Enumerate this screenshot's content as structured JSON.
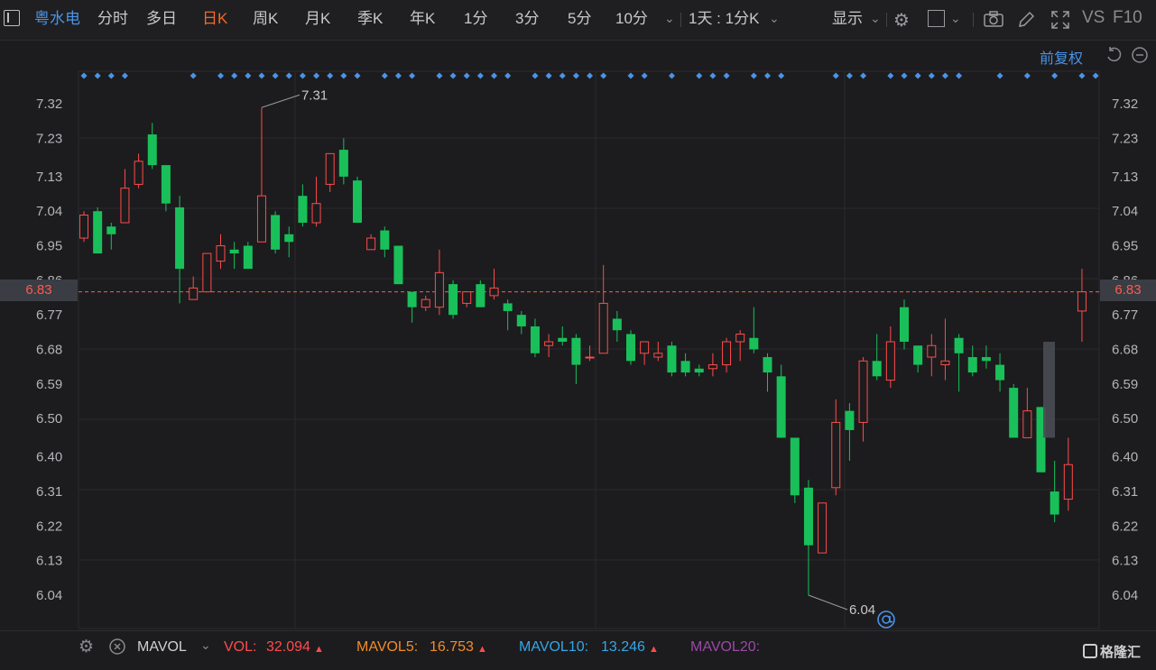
{
  "toolbar": {
    "stock_name": "粤水电",
    "periods": [
      "分时",
      "多日",
      "日K",
      "周K",
      "月K",
      "季K",
      "年K",
      "1分",
      "3分",
      "5分",
      "10分"
    ],
    "active_period": "日K",
    "period_dropdown_label": "1天 : 1分K",
    "display_label": "显示",
    "vs_label": "VS",
    "f10_label": "F10"
  },
  "chart": {
    "adjust_label": "前复权",
    "current_price": "6.83",
    "high_label": "7.31",
    "low_label": "6.04",
    "y_ticks": [
      "7.32",
      "7.23",
      "7.13",
      "7.04",
      "6.95",
      "6.86",
      "6.77",
      "6.68",
      "6.59",
      "6.50",
      "6.40",
      "6.31",
      "6.22",
      "6.13",
      "6.04"
    ],
    "colors": {
      "up": "#ff4b4b",
      "down": "#19c05a",
      "grid": "#2a2a2c",
      "signal": "#4b93e6"
    }
  },
  "chart_data": {
    "type": "candlestick",
    "y_ticks": [
      7.32,
      7.23,
      7.13,
      7.04,
      6.95,
      6.86,
      6.77,
      6.68,
      6.59,
      6.5,
      6.4,
      6.31,
      6.22,
      6.13,
      6.04
    ],
    "ylim": [
      5.99,
      7.37
    ],
    "current_price": 6.83,
    "high": 7.31,
    "low": 6.04,
    "candles": [
      {
        "o": 6.97,
        "c": 7.03,
        "h": 7.04,
        "l": 6.96
      },
      {
        "o": 7.04,
        "c": 6.93,
        "h": 7.05,
        "l": 6.93
      },
      {
        "o": 7.0,
        "c": 6.98,
        "h": 7.01,
        "l": 6.94
      },
      {
        "o": 7.01,
        "c": 7.1,
        "h": 7.15,
        "l": 7.01
      },
      {
        "o": 7.11,
        "c": 7.17,
        "h": 7.19,
        "l": 7.1
      },
      {
        "o": 7.24,
        "c": 7.16,
        "h": 7.27,
        "l": 7.15
      },
      {
        "o": 7.16,
        "c": 7.06,
        "h": 7.16,
        "l": 7.04
      },
      {
        "o": 7.05,
        "c": 6.89,
        "h": 7.08,
        "l": 6.8
      },
      {
        "o": 6.81,
        "c": 6.84,
        "h": 6.87,
        "l": 6.81
      },
      {
        "o": 6.83,
        "c": 6.93,
        "h": 6.93,
        "l": 6.83
      },
      {
        "o": 6.91,
        "c": 6.95,
        "h": 6.98,
        "l": 6.89
      },
      {
        "o": 6.94,
        "c": 6.93,
        "h": 6.96,
        "l": 6.89
      },
      {
        "o": 6.95,
        "c": 6.89,
        "h": 6.96,
        "l": 6.89
      },
      {
        "o": 6.96,
        "c": 7.08,
        "h": 7.31,
        "l": 6.96
      },
      {
        "o": 7.03,
        "c": 6.94,
        "h": 7.04,
        "l": 6.93
      },
      {
        "o": 6.98,
        "c": 6.96,
        "h": 7.0,
        "l": 6.92
      },
      {
        "o": 7.08,
        "c": 7.01,
        "h": 7.11,
        "l": 7.0
      },
      {
        "o": 7.01,
        "c": 7.06,
        "h": 7.13,
        "l": 7.0
      },
      {
        "o": 7.11,
        "c": 7.19,
        "h": 7.19,
        "l": 7.09
      },
      {
        "o": 7.2,
        "c": 7.13,
        "h": 7.23,
        "l": 7.11
      },
      {
        "o": 7.12,
        "c": 7.01,
        "h": 7.13,
        "l": 7.01
      },
      {
        "o": 6.94,
        "c": 6.97,
        "h": 6.98,
        "l": 6.94
      },
      {
        "o": 6.99,
        "c": 6.94,
        "h": 7.0,
        "l": 6.92
      },
      {
        "o": 6.95,
        "c": 6.85,
        "h": 6.95,
        "l": 6.85
      },
      {
        "o": 6.83,
        "c": 6.79,
        "h": 6.83,
        "l": 6.75
      },
      {
        "o": 6.79,
        "c": 6.81,
        "h": 6.82,
        "l": 6.78
      },
      {
        "o": 6.79,
        "c": 6.88,
        "h": 6.94,
        "l": 6.77
      },
      {
        "o": 6.85,
        "c": 6.77,
        "h": 6.86,
        "l": 6.76
      },
      {
        "o": 6.8,
        "c": 6.83,
        "h": 6.83,
        "l": 6.79
      },
      {
        "o": 6.85,
        "c": 6.79,
        "h": 6.86,
        "l": 6.79
      },
      {
        "o": 6.82,
        "c": 6.84,
        "h": 6.89,
        "l": 6.81
      },
      {
        "o": 6.8,
        "c": 6.78,
        "h": 6.81,
        "l": 6.73
      },
      {
        "o": 6.77,
        "c": 6.74,
        "h": 6.78,
        "l": 6.72
      },
      {
        "o": 6.74,
        "c": 6.67,
        "h": 6.76,
        "l": 6.66
      },
      {
        "o": 6.69,
        "c": 6.7,
        "h": 6.72,
        "l": 6.66
      },
      {
        "o": 6.71,
        "c": 6.7,
        "h": 6.74,
        "l": 6.69
      },
      {
        "o": 6.71,
        "c": 6.64,
        "h": 6.72,
        "l": 6.59
      },
      {
        "o": 6.66,
        "c": 6.66,
        "h": 6.69,
        "l": 6.65
      },
      {
        "o": 6.67,
        "c": 6.8,
        "h": 6.9,
        "l": 6.67
      },
      {
        "o": 6.76,
        "c": 6.73,
        "h": 6.78,
        "l": 6.7
      },
      {
        "o": 6.72,
        "c": 6.65,
        "h": 6.73,
        "l": 6.64
      },
      {
        "o": 6.67,
        "c": 6.7,
        "h": 6.7,
        "l": 6.64
      },
      {
        "o": 6.66,
        "c": 6.67,
        "h": 6.7,
        "l": 6.65
      },
      {
        "o": 6.69,
        "c": 6.62,
        "h": 6.7,
        "l": 6.61
      },
      {
        "o": 6.65,
        "c": 6.62,
        "h": 6.67,
        "l": 6.61
      },
      {
        "o": 6.63,
        "c": 6.62,
        "h": 6.64,
        "l": 6.61
      },
      {
        "o": 6.63,
        "c": 6.64,
        "h": 6.67,
        "l": 6.61
      },
      {
        "o": 6.64,
        "c": 6.7,
        "h": 6.71,
        "l": 6.62
      },
      {
        "o": 6.7,
        "c": 6.72,
        "h": 6.73,
        "l": 6.65
      },
      {
        "o": 6.71,
        "c": 6.68,
        "h": 6.79,
        "l": 6.67
      },
      {
        "o": 6.66,
        "c": 6.62,
        "h": 6.67,
        "l": 6.57
      },
      {
        "o": 6.61,
        "c": 6.45,
        "h": 6.64,
        "l": 6.45
      },
      {
        "o": 6.45,
        "c": 6.3,
        "h": 6.45,
        "l": 6.28
      },
      {
        "o": 6.32,
        "c": 6.17,
        "h": 6.34,
        "l": 6.04
      },
      {
        "o": 6.15,
        "c": 6.28,
        "h": 6.28,
        "l": 6.15
      },
      {
        "o": 6.32,
        "c": 6.49,
        "h": 6.55,
        "l": 6.3
      },
      {
        "o": 6.52,
        "c": 6.47,
        "h": 6.54,
        "l": 6.39
      },
      {
        "o": 6.49,
        "c": 6.65,
        "h": 6.66,
        "l": 6.44
      },
      {
        "o": 6.65,
        "c": 6.61,
        "h": 6.72,
        "l": 6.6
      },
      {
        "o": 6.6,
        "c": 6.7,
        "h": 6.74,
        "l": 6.58
      },
      {
        "o": 6.79,
        "c": 6.7,
        "h": 6.81,
        "l": 6.68
      },
      {
        "o": 6.69,
        "c": 6.64,
        "h": 6.69,
        "l": 6.62
      },
      {
        "o": 6.66,
        "c": 6.69,
        "h": 6.72,
        "l": 6.61
      },
      {
        "o": 6.64,
        "c": 6.65,
        "h": 6.76,
        "l": 6.6
      },
      {
        "o": 6.71,
        "c": 6.67,
        "h": 6.72,
        "l": 6.57
      },
      {
        "o": 6.66,
        "c": 6.62,
        "h": 6.69,
        "l": 6.61
      },
      {
        "o": 6.66,
        "c": 6.65,
        "h": 6.69,
        "l": 6.63
      },
      {
        "o": 6.64,
        "c": 6.6,
        "h": 6.67,
        "l": 6.57
      },
      {
        "o": 6.58,
        "c": 6.45,
        "h": 6.59,
        "l": 6.45
      },
      {
        "o": 6.45,
        "c": 6.52,
        "h": 6.58,
        "l": 6.45
      },
      {
        "o": 6.53,
        "c": 6.36,
        "h": 6.53,
        "l": 6.36
      },
      {
        "o": 6.31,
        "c": 6.25,
        "h": 6.39,
        "l": 6.23
      },
      {
        "o": 6.29,
        "c": 6.38,
        "h": 6.45,
        "l": 6.26
      },
      {
        "o": 6.78,
        "c": 6.83,
        "h": 6.89,
        "l": 6.7
      }
    ],
    "signal_markers": [
      0,
      1,
      2,
      3,
      8,
      10,
      11,
      12,
      13,
      14,
      15,
      16,
      17,
      18,
      19,
      20,
      22,
      23,
      24,
      26,
      27,
      28,
      29,
      30,
      31,
      33,
      34,
      35,
      36,
      37,
      38,
      40,
      41,
      43,
      45,
      46,
      47,
      49,
      50,
      51,
      55,
      56,
      57,
      59,
      60,
      61,
      62,
      63,
      64,
      67,
      69,
      71,
      73,
      74
    ]
  },
  "volume_bar": {
    "indicator_label": "MAVOL",
    "vol_label": "VOL:",
    "vol_value": "32.094",
    "mavol5_label": "MAVOL5:",
    "mavol5_value": "16.753",
    "mavol10_label": "MAVOL10:",
    "mavol10_value": "13.246",
    "mavol20_label": "MAVOL20:",
    "up_arrow": "▲",
    "colors": {
      "vol": "#ff4b4b",
      "mavol5": "#f28c2a",
      "mavol10": "#36a6e6",
      "mavol20": "#9a4aa6"
    }
  },
  "brand": {
    "name": "格隆汇"
  }
}
